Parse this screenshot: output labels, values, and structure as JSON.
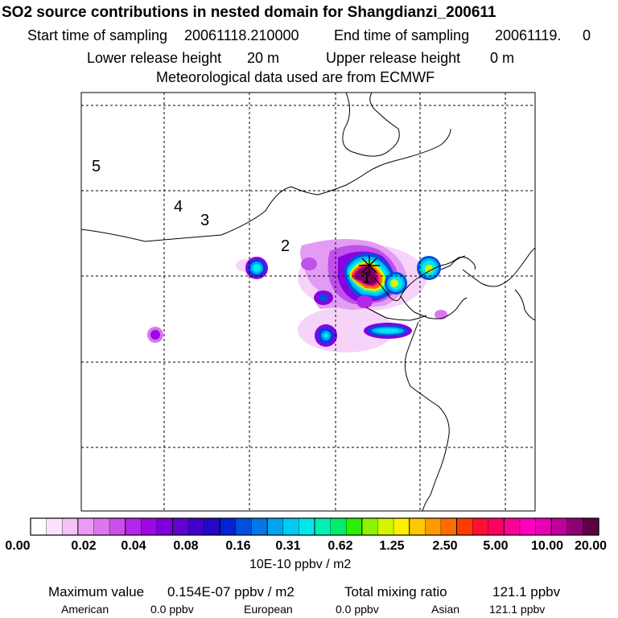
{
  "header": {
    "title": "SO2 source contributions in nested domain for Shangdianzi_200611",
    "start_label": "Start time of sampling",
    "start_value": "20061118.210000",
    "end_label": "End time of sampling",
    "end_value": "20061119.",
    "end_hour": "0",
    "lower_label": "Lower release height",
    "lower_value": "20 m",
    "upper_label": "Upper release height",
    "upper_value": "0 m",
    "met_text": "Meteorological data used are from ECMWF"
  },
  "map": {
    "region_labels": [
      "5",
      "4",
      "3",
      "2",
      "1"
    ],
    "station_marker": "star",
    "plumes": [
      {
        "name": "main-source",
        "level": 8
      },
      {
        "name": "east-source",
        "level": 6
      },
      {
        "name": "west-source",
        "level": 5
      },
      {
        "name": "south-source",
        "level": 5
      },
      {
        "name": "southeast-streak",
        "level": 5
      },
      {
        "name": "small-south",
        "level": 4
      },
      {
        "name": "far-west-spot",
        "level": 3
      }
    ]
  },
  "colorbar": {
    "tick_labels": [
      "0.00",
      "0.02",
      "0.04",
      "0.08",
      "0.16",
      "0.31",
      "0.62",
      "1.25",
      "2.50",
      "5.00",
      "10.00",
      "20.00"
    ],
    "unit_label": "10E-10 ppbv / m2",
    "colors": [
      "#ffffff",
      "#fbe4fb",
      "#f4c2f6",
      "#ea9cf2",
      "#dd77ee",
      "#cc4fea",
      "#b526ea",
      "#9f06e4",
      "#7f00dc",
      "#6000d4",
      "#4200cc",
      "#2308c4",
      "#0422d8",
      "#0050e0",
      "#0078ea",
      "#00a4f0",
      "#00caf4",
      "#00e8e8",
      "#00f0b4",
      "#00ec6c",
      "#28f000",
      "#8cf400",
      "#d4f400",
      "#fff000",
      "#ffc800",
      "#ff9a00",
      "#ff6c00",
      "#ff3c00",
      "#ff1032",
      "#ff0064",
      "#ff0096",
      "#ff00c0",
      "#e800b4",
      "#c0009a",
      "#900074",
      "#5e0044"
    ]
  },
  "footer": {
    "max_label": "Maximum value",
    "max_value": "0.154E-07 ppbv / m2",
    "total_label": "Total mixing ratio",
    "total_value": "121.1 ppbv",
    "american_label": "American",
    "american_value": "0.0 ppbv",
    "european_label": "European",
    "european_value": "0.0 ppbv",
    "asian_label": "Asian",
    "asian_value": "121.1 ppbv"
  }
}
